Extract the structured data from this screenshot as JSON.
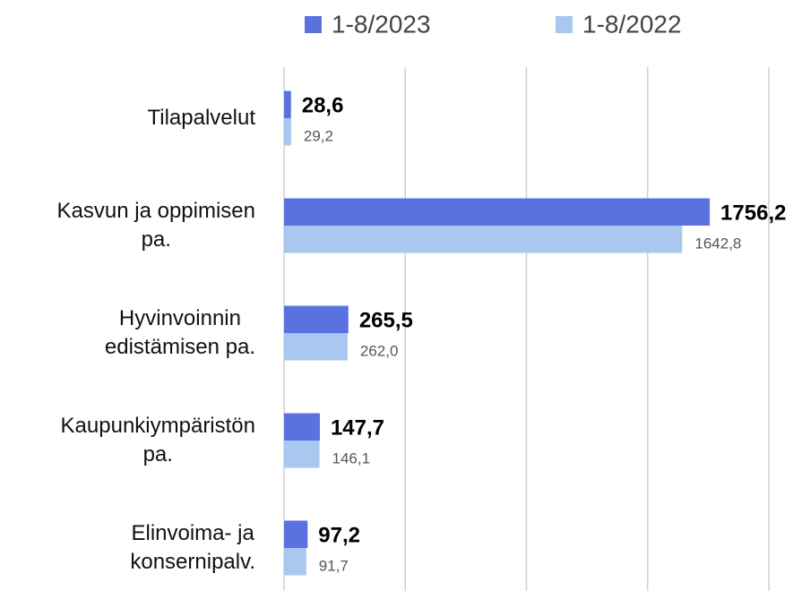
{
  "chart_data": {
    "type": "hbar",
    "categories": [
      "Tilapalvelut",
      "Kasvun ja oppimisen\npa.",
      "Hyvinvoinnin\nedistämisen pa.",
      "Kaupunkiympäristön\npa.",
      "Elinvoima- ja\nkonsernipalv."
    ],
    "series": [
      {
        "name": "1-8/2023",
        "color": "#5a72e0",
        "values": [
          28.6,
          1756.2,
          265.5,
          147.7,
          97.2
        ],
        "value_labels": [
          "28,6",
          "1756,2",
          "265,5",
          "147,7",
          "97,2"
        ]
      },
      {
        "name": "1-8/2022",
        "color": "#a9c7ef",
        "values": [
          29.2,
          1642.8,
          262.0,
          146.1,
          91.7
        ],
        "value_labels": [
          "29,2",
          "1642,8",
          "262,0",
          "146,1",
          "91,7"
        ]
      }
    ],
    "xlim": [
      0,
      2000
    ],
    "xticks": [
      0,
      500,
      1000,
      1500,
      2000
    ],
    "grid": true,
    "legend": "top"
  }
}
